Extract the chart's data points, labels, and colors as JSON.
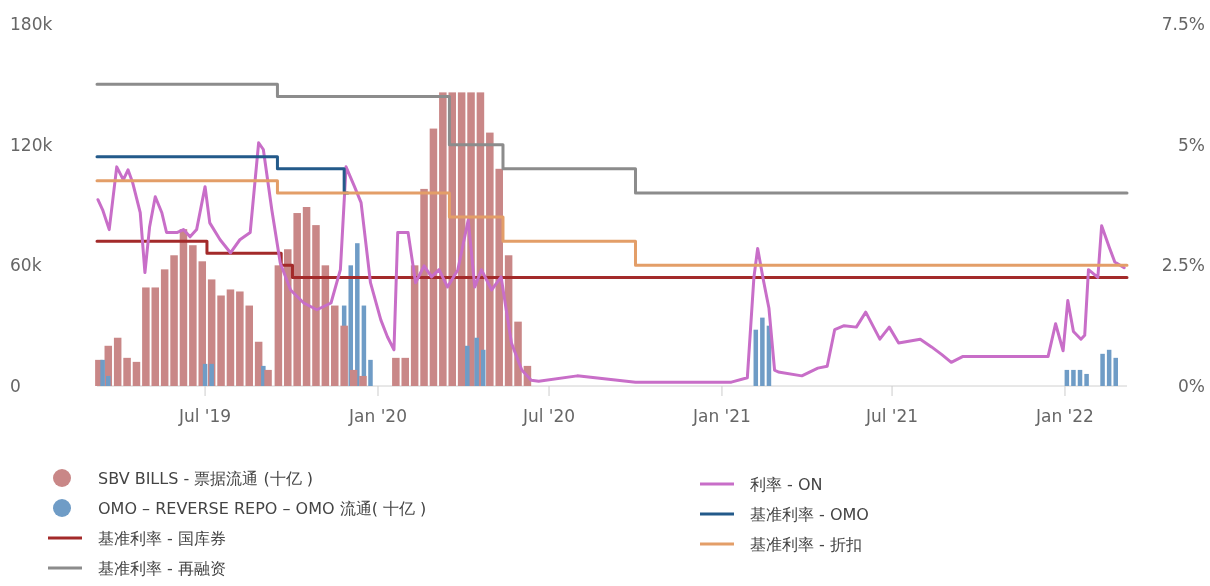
{
  "chart_data": {
    "type": "bar",
    "xlim": [
      "2019-03-08",
      "2022-03-08"
    ],
    "xticks": [
      {
        "value": "2019-07-01",
        "label": "Jul '19"
      },
      {
        "value": "2020-01-01",
        "label": "Jan '20"
      },
      {
        "value": "2020-07-01",
        "label": "Jul '20"
      },
      {
        "value": "2021-01-01",
        "label": "Jan '21"
      },
      {
        "value": "2021-07-01",
        "label": "Jul '21"
      },
      {
        "value": "2022-01-01",
        "label": "Jan '22"
      }
    ],
    "ylim": [
      0,
      180000
    ],
    "yticks": [
      0,
      {
        "value": 60000,
        "label": "60k"
      },
      {
        "value": 120000,
        "label": "120k"
      },
      {
        "value": 180000,
        "label": "180k"
      }
    ],
    "y2lim": [
      0,
      7.5
    ],
    "y2ticks": [
      {
        "value": 0,
        "label": "0%"
      },
      {
        "value": 2.5,
        "label": "2.5%"
      },
      {
        "value": 5,
        "label": "5%"
      },
      {
        "value": 7.5,
        "label": "7.5%"
      }
    ],
    "legend": "bottom",
    "marker": "none",
    "series": [
      {
        "name": "SBV BILLS -  票据流通 (十亿 )",
        "color": "#c98787",
        "x": [
          "2019-03-10",
          "2019-03-20",
          "2019-03-30",
          "2019-04-09",
          "2019-04-19",
          "2019-04-29",
          "2019-05-09",
          "2019-05-19",
          "2019-05-29",
          "2019-06-08",
          "2019-06-18",
          "2019-06-28",
          "2019-07-08",
          "2019-07-18",
          "2019-07-28",
          "2019-08-07",
          "2019-08-17",
          "2019-08-27",
          "2019-09-06",
          "2019-09-17",
          "2019-09-27",
          "2019-10-07",
          "2019-10-17",
          "2019-10-27",
          "2019-11-06",
          "2019-11-16",
          "2019-11-26",
          "2019-12-06",
          "2019-12-16",
          "2020-01-20",
          "2020-01-30",
          "2020-02-09",
          "2020-02-19",
          "2020-02-29",
          "2020-03-10",
          "2020-03-20",
          "2020-03-30",
          "2020-04-09",
          "2020-04-19",
          "2020-04-29",
          "2020-05-09",
          "2020-05-19",
          "2020-05-29",
          "2020-06-08"
        ],
        "values": [
          13000,
          20000,
          24000,
          14000,
          12000,
          49000,
          49000,
          58000,
          65000,
          78000,
          70000,
          62000,
          53000,
          45000,
          48000,
          47000,
          40000,
          22000,
          8000,
          60000,
          68000,
          86000,
          89000,
          80000,
          60000,
          40000,
          30000,
          8000,
          5000,
          14000,
          14000,
          60000,
          98000,
          128000,
          146000,
          146000,
          146000,
          146000,
          146000,
          126000,
          108000,
          65000,
          32000,
          10000
        ]
      },
      {
        "name": "OMO – REVERSE REPO – OMO 流通( 十亿 )",
        "color": "#6f9cc6",
        "x": [
          "2019-03-14",
          "2019-03-20",
          "2019-07-01",
          "2019-07-08",
          "2019-09-01",
          "2019-11-26",
          "2019-12-03",
          "2019-12-10",
          "2019-12-17",
          "2019-12-24",
          "2020-04-05",
          "2020-04-15",
          "2020-04-22",
          "2021-02-06",
          "2021-02-13",
          "2021-02-20",
          "2022-01-03",
          "2022-01-10",
          "2022-01-17",
          "2022-01-24",
          "2022-02-10",
          "2022-02-17",
          "2022-02-24"
        ],
        "values": [
          13000,
          5000,
          11000,
          11000,
          10000,
          40000,
          60000,
          71000,
          40000,
          13000,
          20000,
          24000,
          18000,
          28000,
          34000,
          30000,
          8000,
          8000,
          8000,
          6000,
          16000,
          18000,
          14000
        ]
      },
      {
        "name": "基准利率 - 国库券",
        "type": "step",
        "axis": "y2",
        "color": "#a32a2a",
        "x": [
          "2019-03-08",
          "2019-07-03",
          "2019-09-20",
          "2019-10-02",
          "2022-03-08"
        ],
        "values": [
          3,
          2.75,
          2.5,
          2.25,
          2.25
        ]
      },
      {
        "name": "基准利率 - 再融资",
        "type": "step",
        "axis": "y2",
        "color": "#8c8c8c",
        "x": [
          "2019-03-08",
          "2019-09-16",
          "2020-03-17",
          "2020-05-13",
          "2020-10-01",
          "2022-03-08"
        ],
        "values": [
          6.25,
          6,
          5,
          4.5,
          4,
          4
        ]
      },
      {
        "name": "利率 - ON",
        "type": "line",
        "axis": "y2",
        "color": "#c86ec8",
        "x": [
          "2019-03-09",
          "2019-03-14",
          "2019-03-21",
          "2019-03-29",
          "2019-04-05",
          "2019-04-10",
          "2019-04-15",
          "2019-04-23",
          "2019-04-28",
          "2019-05-03",
          "2019-05-09",
          "2019-05-16",
          "2019-05-21",
          "2019-06-01",
          "2019-06-08",
          "2019-06-15",
          "2019-06-22",
          "2019-07-01",
          "2019-07-06",
          "2019-07-17",
          "2019-07-28",
          "2019-08-07",
          "2019-08-18",
          "2019-08-27",
          "2019-09-01",
          "2019-09-10",
          "2019-09-19",
          "2019-09-30",
          "2019-10-14",
          "2019-10-28",
          "2019-11-12",
          "2019-11-22",
          "2019-11-28",
          "2019-12-07",
          "2019-12-14",
          "2019-12-24",
          "2020-01-04",
          "2020-01-11",
          "2020-01-18",
          "2020-01-22",
          "2020-02-02",
          "2020-02-10",
          "2020-02-19",
          "2020-02-27",
          "2020-03-06",
          "2020-03-15",
          "2020-03-26",
          "2020-04-06",
          "2020-04-13",
          "2020-04-20",
          "2020-05-01",
          "2020-05-11",
          "2020-05-22",
          "2020-06-02",
          "2020-06-12",
          "2020-06-20",
          "2020-07-31",
          "2020-10-01",
          "2021-01-11",
          "2021-01-28",
          "2021-02-04",
          "2021-02-08",
          "2021-02-14",
          "2021-02-20",
          "2021-02-26",
          "2021-03-02",
          "2021-03-27",
          "2021-04-13",
          "2021-04-23",
          "2021-05-01",
          "2021-05-11",
          "2021-05-24",
          "2021-06-03",
          "2021-06-18",
          "2021-06-28",
          "2021-07-08",
          "2021-07-31",
          "2021-08-12",
          "2021-08-23",
          "2021-09-02",
          "2021-09-14",
          "2021-10-25",
          "2021-12-14",
          "2021-12-22",
          "2021-12-30",
          "2022-01-04",
          "2022-01-10",
          "2022-01-18",
          "2022-01-22",
          "2022-01-26",
          "2022-02-05",
          "2022-02-09",
          "2022-02-17",
          "2022-02-23",
          "2022-03-05"
        ],
        "values": [
          3.86,
          3.65,
          3.24,
          4.54,
          4.27,
          4.48,
          4.21,
          3.59,
          2.35,
          3.3,
          3.92,
          3.59,
          3.18,
          3.18,
          3.24,
          3.09,
          3.24,
          4.13,
          3.38,
          3.03,
          2.76,
          3.03,
          3.18,
          5.04,
          4.9,
          3.65,
          2.55,
          1.99,
          1.72,
          1.58,
          1.72,
          2.41,
          4.54,
          4.13,
          3.8,
          2.14,
          1.37,
          1.02,
          0.75,
          3.18,
          3.18,
          2.14,
          2.49,
          2.26,
          2.41,
          2.05,
          2.41,
          3.44,
          2.05,
          2.41,
          1.99,
          2.26,
          0.89,
          0.33,
          0.12,
          0.1,
          0.21,
          0.08,
          0.08,
          0.17,
          2.25,
          2.85,
          2.2,
          1.61,
          0.33,
          0.29,
          0.21,
          0.37,
          0.41,
          1.17,
          1.25,
          1.22,
          1.53,
          0.97,
          1.22,
          0.89,
          0.97,
          0.81,
          0.65,
          0.49,
          0.61,
          0.61,
          0.61,
          1.29,
          0.73,
          1.77,
          1.13,
          0.97,
          1.05,
          2.41,
          2.25,
          3.32,
          2.88,
          2.57,
          2.45
        ]
      },
      {
        "name": "基准利率 - OMO",
        "type": "step",
        "axis": "y2",
        "color": "#235a8a",
        "x": [
          "2019-03-08",
          "2019-09-16",
          "2019-11-26",
          "2019-11-30"
        ],
        "values": [
          4.75,
          4.5,
          4,
          4
        ]
      },
      {
        "name": "基准利率 - 折扣",
        "type": "step",
        "axis": "y2",
        "color": "#e39e68",
        "x": [
          "2019-03-08",
          "2019-09-16",
          "2020-03-17",
          "2020-05-13",
          "2020-10-01",
          "2022-03-08"
        ],
        "values": [
          4.25,
          4,
          3.5,
          3,
          2.5,
          2.5
        ]
      }
    ]
  }
}
